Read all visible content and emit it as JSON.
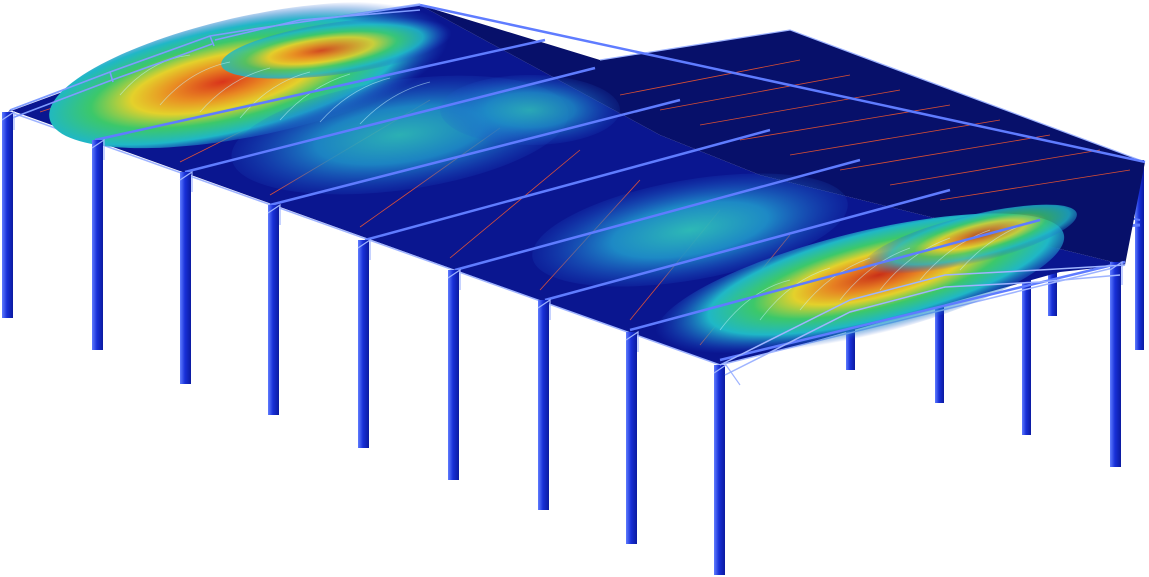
{
  "scene": {
    "subject": "steel-portal-frame-building-fea-roof-deformation",
    "colors": {
      "background": "#ffffff",
      "roof_fill": "#0a1690",
      "roof_fill_dark": "#07106a",
      "frame_column": "#1830d8",
      "frame_column_light": "#5f7cff",
      "frame_outline": "#9fb4ff",
      "purlin_line": "#ff5a2a",
      "result_low": "#1f4fd0",
      "result_mid_low": "#1fb7c7",
      "result_mid": "#3cc86a",
      "result_mid_high": "#e4d12b",
      "result_high": "#d9341b"
    }
  }
}
